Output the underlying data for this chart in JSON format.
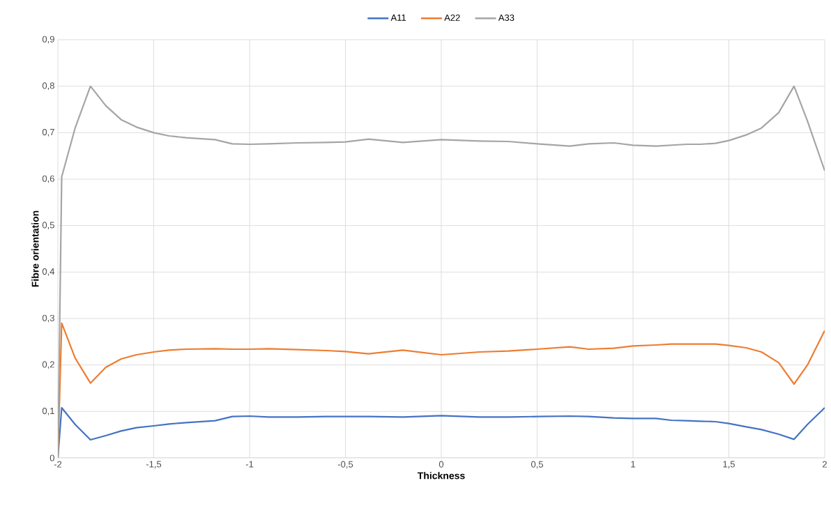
{
  "chart_data": {
    "type": "line",
    "xlabel": "Thickness",
    "ylabel": "Fibre orientation",
    "x": [
      -2,
      -1.98,
      -1.91,
      -1.83,
      -1.75,
      -1.67,
      -1.59,
      -1.5,
      -1.42,
      -1.33,
      -1.18,
      -1.09,
      -1,
      -0.9,
      -0.75,
      -0.6,
      -0.5,
      -0.38,
      -0.2,
      0,
      0.2,
      0.35,
      0.5,
      0.67,
      0.77,
      0.9,
      1,
      1.12,
      1.2,
      1.28,
      1.35,
      1.43,
      1.5,
      1.59,
      1.67,
      1.76,
      1.84,
      1.91,
      2
    ],
    "series": [
      {
        "name": "A11",
        "color": "#4472c4",
        "values": [
          0,
          0.108,
          0.072,
          0.039,
          0.048,
          0.058,
          0.065,
          0.069,
          0.073,
          0.076,
          0.08,
          0.089,
          0.09,
          0.088,
          0.088,
          0.089,
          0.089,
          0.089,
          0.088,
          0.091,
          0.088,
          0.088,
          0.089,
          0.09,
          0.089,
          0.086,
          0.085,
          0.085,
          0.081,
          0.08,
          0.079,
          0.078,
          0.074,
          0.067,
          0.061,
          0.051,
          0.04,
          0.072,
          0.108
        ]
      },
      {
        "name": "A22",
        "color": "#ed7d31",
        "values": [
          0,
          0.29,
          0.215,
          0.161,
          0.195,
          0.213,
          0.222,
          0.228,
          0.232,
          0.234,
          0.235,
          0.234,
          0.234,
          0.235,
          0.233,
          0.231,
          0.229,
          0.224,
          0.232,
          0.222,
          0.228,
          0.23,
          0.234,
          0.239,
          0.234,
          0.236,
          0.241,
          0.243,
          0.245,
          0.245,
          0.245,
          0.245,
          0.242,
          0.237,
          0.228,
          0.205,
          0.159,
          0.2,
          0.274
        ]
      },
      {
        "name": "A33",
        "color": "#a5a5a5",
        "values": [
          0,
          0.605,
          0.71,
          0.8,
          0.758,
          0.728,
          0.712,
          0.7,
          0.693,
          0.689,
          0.685,
          0.676,
          0.675,
          0.676,
          0.678,
          0.679,
          0.68,
          0.686,
          0.679,
          0.685,
          0.682,
          0.681,
          0.676,
          0.671,
          0.676,
          0.678,
          0.673,
          0.671,
          0.673,
          0.675,
          0.675,
          0.677,
          0.683,
          0.695,
          0.71,
          0.743,
          0.8,
          0.725,
          0.618
        ]
      }
    ],
    "xlim": [
      -2,
      2
    ],
    "xticks": [
      -2,
      {
        "value": -1.5,
        "label": "-1,5"
      },
      -1,
      {
        "value": -0.5,
        "label": "-0,5"
      },
      0,
      {
        "value": 0.5,
        "label": "0,5"
      },
      1,
      {
        "value": 1.5,
        "label": "1,5"
      },
      2
    ],
    "ylim": [
      0,
      0.9
    ],
    "yticks": [
      0,
      {
        "value": 0.1,
        "label": "0,1"
      },
      {
        "value": 0.2,
        "label": "0,2"
      },
      {
        "value": 0.3,
        "label": "0,3"
      },
      {
        "value": 0.4,
        "label": "0,4"
      },
      {
        "value": 0.5,
        "label": "0,5"
      },
      {
        "value": 0.6,
        "label": "0,6"
      },
      {
        "value": 0.7,
        "label": "0,7"
      },
      {
        "value": 0.8,
        "label": "0,8"
      },
      {
        "value": 0.9,
        "label": "0,9"
      }
    ],
    "grid": true,
    "legend": "top",
    "marker": "none",
    "line_style": "solid"
  }
}
